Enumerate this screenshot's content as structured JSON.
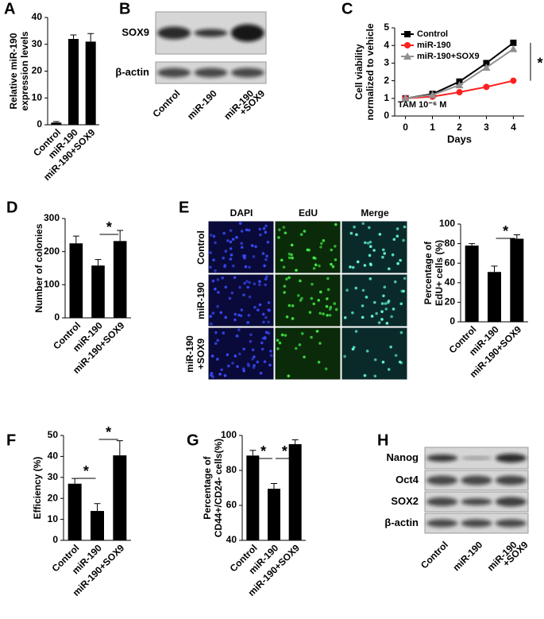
{
  "chart_data": [
    {
      "type": "bar",
      "panel": "A",
      "ylabel": [
        "Relative miR-190",
        "expression levels"
      ],
      "categories": [
        "Control",
        "miR-190",
        "miR-190+SOX9"
      ],
      "values": [
        0.8,
        32,
        31
      ],
      "errors": [
        0.4,
        1.5,
        3
      ],
      "color": "#000000",
      "ylim": [
        0,
        40
      ],
      "yticks": [
        0,
        10,
        20,
        30,
        40
      ]
    },
    {
      "type": "blot",
      "panel": "B",
      "rows": [
        "SOX9",
        "β-actin"
      ],
      "categories": [
        "Control",
        "miR-190",
        [
          "miR-190",
          "+SOX9"
        ]
      ]
    },
    {
      "type": "line",
      "panel": "C",
      "ylabel": [
        "Cell viability",
        "normalized to vehicle"
      ],
      "xlabel": "Days",
      "x": [
        0,
        1,
        2,
        3,
        4
      ],
      "xlim": [
        -0.4,
        4.4
      ],
      "xticks": [
        0,
        1,
        2,
        3,
        4
      ],
      "ylim": [
        0,
        5
      ],
      "yticks": [
        0,
        1,
        2,
        3,
        4,
        5
      ],
      "legend": "top-left",
      "series": [
        {
          "name": "Control",
          "color": "#000000",
          "marker": "square",
          "values": [
            1,
            1.25,
            1.95,
            3.0,
            4.15
          ]
        },
        {
          "name": "miR-190",
          "color": "#ff2020",
          "marker": "circle",
          "values": [
            1,
            1.1,
            1.35,
            1.65,
            2.0
          ]
        },
        {
          "name": "miR-190+SOX9",
          "color": "#909090",
          "marker": "triangle",
          "values": [
            1,
            1.2,
            1.75,
            2.75,
            3.8
          ]
        }
      ],
      "annotations": [
        "TAM 10⁻⁶ M",
        "*"
      ]
    },
    {
      "type": "bar",
      "panel": "D",
      "ylabel": [
        "Number of colonies"
      ],
      "categories": [
        "Control",
        "miR-190",
        "miR-190+SOX9"
      ],
      "values": [
        225,
        158,
        232
      ],
      "errors": [
        22,
        18,
        32
      ],
      "color": "#000000",
      "ylim": [
        0,
        300
      ],
      "yticks": [
        0,
        100,
        200,
        300
      ],
      "annotations": [
        "*"
      ]
    },
    {
      "type": "micrograph",
      "panel": "E",
      "columns": [
        "DAPI",
        "EdU",
        "Merge"
      ],
      "rows": [
        "Control",
        "miR-190",
        [
          "miR-190",
          "+SOX9"
        ]
      ]
    },
    {
      "type": "bar",
      "ylabel": [
        "Percentage of",
        "EdU+ cells (%)"
      ],
      "categories": [
        "Control",
        "miR-190",
        "miR-190+SOX9"
      ],
      "values": [
        78,
        51,
        85
      ],
      "errors": [
        2,
        6,
        4
      ],
      "color": "#000000",
      "ylim": [
        0,
        100
      ],
      "yticks": [
        0,
        20,
        40,
        60,
        80,
        100
      ],
      "annotations": [
        "*"
      ]
    },
    {
      "type": "bar",
      "panel": "F",
      "ylabel": [
        "Efficiency (%)"
      ],
      "categories": [
        "Control",
        "miR-190",
        "miR-190+SOX9"
      ],
      "values": [
        27,
        14,
        40.5
      ],
      "errors": [
        2.5,
        3.5,
        7
      ],
      "color": "#000000",
      "ylim": [
        0,
        50
      ],
      "yticks": [
        0,
        10,
        20,
        30,
        40,
        50
      ],
      "annotations": [
        "*",
        "*"
      ]
    },
    {
      "type": "bar",
      "panel": "G",
      "ylabel": [
        "Percentage of",
        "CD44+/CD24- cells(%)"
      ],
      "categories": [
        "Control",
        "miR-190",
        "miR-190+SOX9"
      ],
      "values": [
        88.5,
        69.5,
        95
      ],
      "errors": [
        3,
        3,
        2.5
      ],
      "color": "#000000",
      "ylim": [
        40,
        100
      ],
      "yticks": [
        40,
        60,
        80,
        100
      ],
      "annotations": [
        "*",
        "*"
      ]
    },
    {
      "type": "blot",
      "panel": "H",
      "rows": [
        "Nanog",
        "Oct4",
        "SOX2",
        "β-actin"
      ],
      "categories": [
        "Control",
        "miR-190",
        [
          "miR-190",
          "+SOX9"
        ]
      ]
    }
  ]
}
